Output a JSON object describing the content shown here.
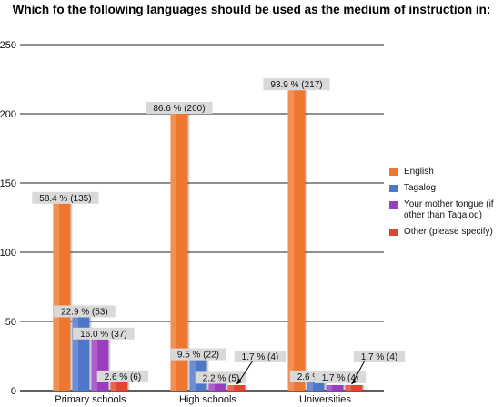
{
  "chart_data": {
    "type": "bar",
    "title": "Which fo the following languages should be used as the medium of instruction in:",
    "categories": [
      "Primary schools",
      "High schools",
      "Universities"
    ],
    "series": [
      {
        "name": "English",
        "color": "#EE7730",
        "values": [
          135,
          200,
          217
        ],
        "labels": [
          "58.4 % (135)",
          "86.6 % (200)",
          "93.9 % (217)"
        ]
      },
      {
        "name": "Tagalog",
        "color": "#4E77C9",
        "values": [
          53,
          22,
          6
        ],
        "labels": [
          "22.9 % (53)",
          "9.5 % (22)",
          "2.6 % (6)"
        ]
      },
      {
        "name": "Your mother tongue (if other than Tagalog)",
        "color": "#9B3DC0",
        "values": [
          37,
          5,
          4
        ],
        "labels": [
          "16.0 % (37)",
          "2.2 % (5)",
          "1.7 % (4)"
        ]
      },
      {
        "name": "Other (please specify)",
        "color": "#E2452E",
        "values": [
          6,
          4,
          4
        ],
        "labels": [
          "2.6 % (6)",
          "1.7 % (4)",
          "1.7 % (4)"
        ]
      }
    ],
    "yticks": [
      0,
      50,
      100,
      150,
      200,
      250
    ],
    "ylim": [
      0,
      250
    ],
    "grid": true,
    "legend_position": "right"
  }
}
